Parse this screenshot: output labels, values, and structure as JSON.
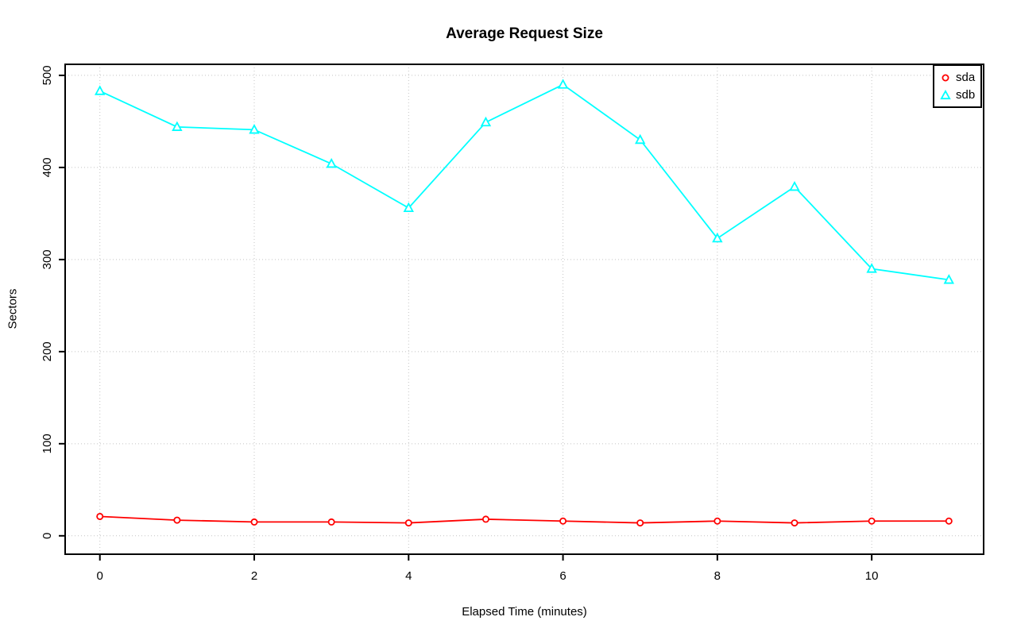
{
  "chart_data": {
    "type": "line",
    "title": "Average Request Size",
    "xlabel": "Elapsed Time (minutes)",
    "ylabel": "Sectors",
    "x": [
      0,
      1,
      2,
      3,
      4,
      5,
      6,
      7,
      8,
      9,
      10,
      11
    ],
    "series": [
      {
        "name": "sda",
        "color": "#FF0000",
        "marker": "circle",
        "values": [
          21,
          17,
          15,
          15,
          14,
          18,
          16,
          14,
          16,
          14,
          16,
          16
        ]
      },
      {
        "name": "sdb",
        "color": "#00FFFF",
        "marker": "triangle",
        "values": [
          483,
          444,
          441,
          404,
          356,
          449,
          490,
          430,
          323,
          379,
          290,
          278
        ]
      }
    ],
    "x_ticks": [
      0,
      2,
      4,
      6,
      8,
      10
    ],
    "y_ticks": [
      0,
      100,
      200,
      300,
      400,
      500
    ],
    "xlim": [
      -0.45,
      11.45
    ],
    "ylim": [
      -20,
      512
    ],
    "grid": true,
    "grid_color": "#C4C4C4",
    "frame_color": "#000000",
    "background": "#FFFFFF",
    "legend_position": "top-right"
  }
}
